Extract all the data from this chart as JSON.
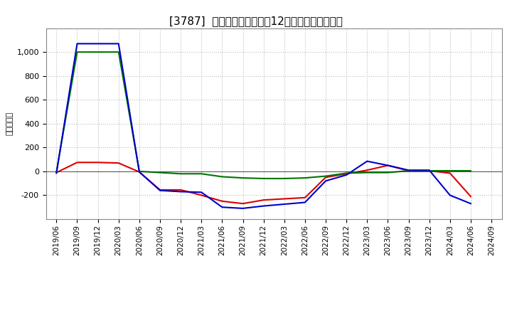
{
  "title": "[3787]  キャッシュフローの12か月移動合計の推移",
  "ylabel": "（百万円）",
  "background_color": "#ffffff",
  "plot_bg_color": "#ffffff",
  "grid_color": "#bbbbbb",
  "x_labels": [
    "2019/06",
    "2019/09",
    "2019/12",
    "2020/03",
    "2020/06",
    "2020/09",
    "2020/12",
    "2021/03",
    "2021/06",
    "2021/09",
    "2021/12",
    "2022/03",
    "2022/06",
    "2022/09",
    "2022/12",
    "2023/03",
    "2023/06",
    "2023/09",
    "2023/12",
    "2024/03",
    "2024/06",
    "2024/09"
  ],
  "operating_cf": [
    -10,
    75,
    75,
    70,
    -5,
    -155,
    -155,
    -200,
    -250,
    -270,
    -240,
    -230,
    -220,
    -50,
    -20,
    10,
    50,
    5,
    5,
    -15,
    -210,
    null
  ],
  "investing_cf": [
    -5,
    1000,
    1000,
    1000,
    0,
    -10,
    -20,
    -20,
    -45,
    -55,
    -60,
    -60,
    -55,
    -40,
    -15,
    -10,
    -10,
    5,
    5,
    5,
    5,
    null
  ],
  "free_cf": [
    -15,
    1070,
    1070,
    1070,
    -5,
    -160,
    -170,
    -175,
    -300,
    -310,
    -290,
    -275,
    -260,
    -80,
    -30,
    85,
    50,
    10,
    10,
    -200,
    -270,
    null
  ],
  "operating_color": "#dd0000",
  "investing_color": "#007700",
  "free_cf_color": "#0000cc",
  "ylim_min": -400,
  "ylim_max": 1200,
  "yticks": [
    -200,
    0,
    200,
    400,
    600,
    800,
    1000
  ]
}
